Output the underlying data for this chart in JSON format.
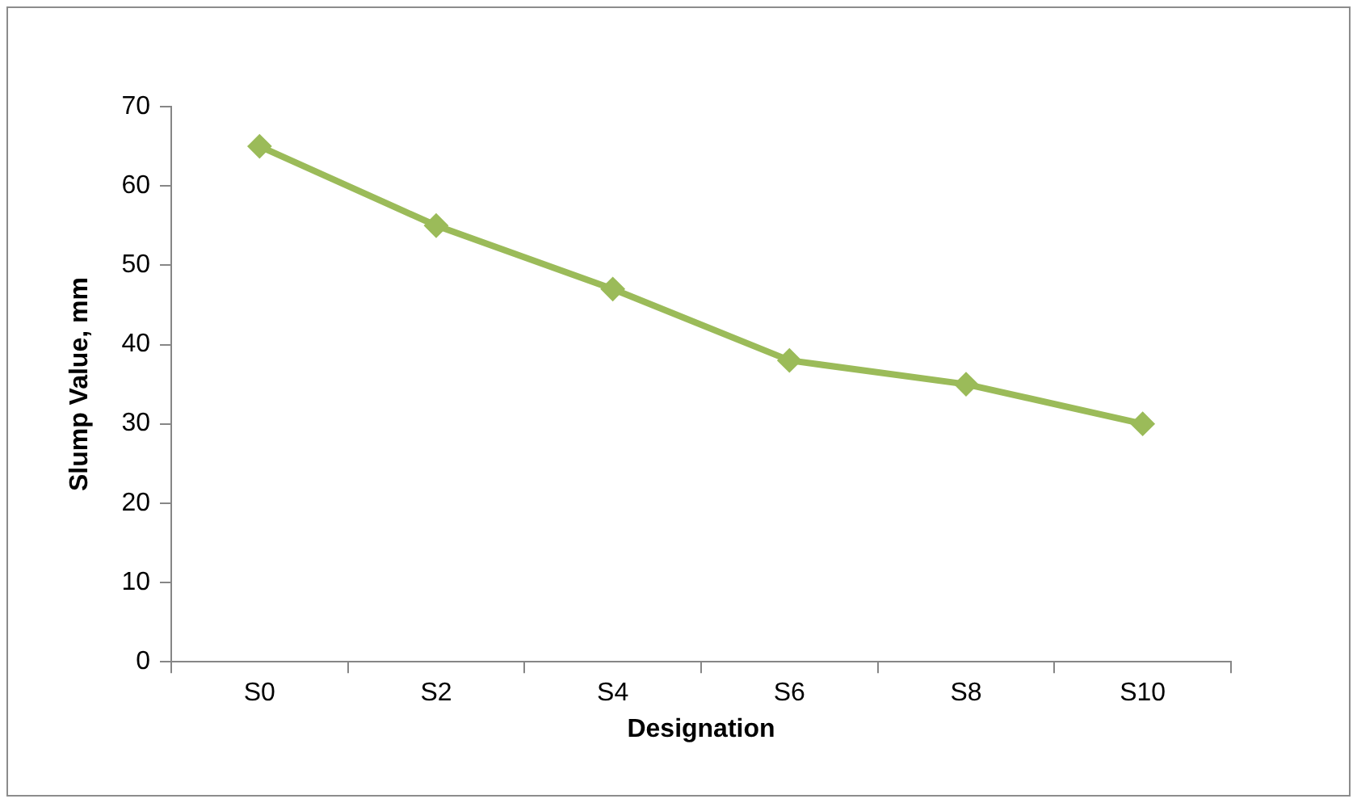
{
  "chart_data": {
    "type": "line",
    "xlabel": "Designation",
    "ylabel": "Slump Value, mm",
    "categories": [
      "S0",
      "S2",
      "S4",
      "S6",
      "S8",
      "S10"
    ],
    "series": [
      {
        "color": "#9bbb59",
        "values": [
          65,
          55,
          47,
          38,
          35,
          30
        ]
      }
    ],
    "ylim": [
      0,
      70
    ],
    "yticks": [
      0,
      10,
      20,
      30,
      40,
      50,
      60,
      70
    ],
    "grid": false,
    "legend": false,
    "marker": "diamond",
    "line_style": "solid"
  }
}
